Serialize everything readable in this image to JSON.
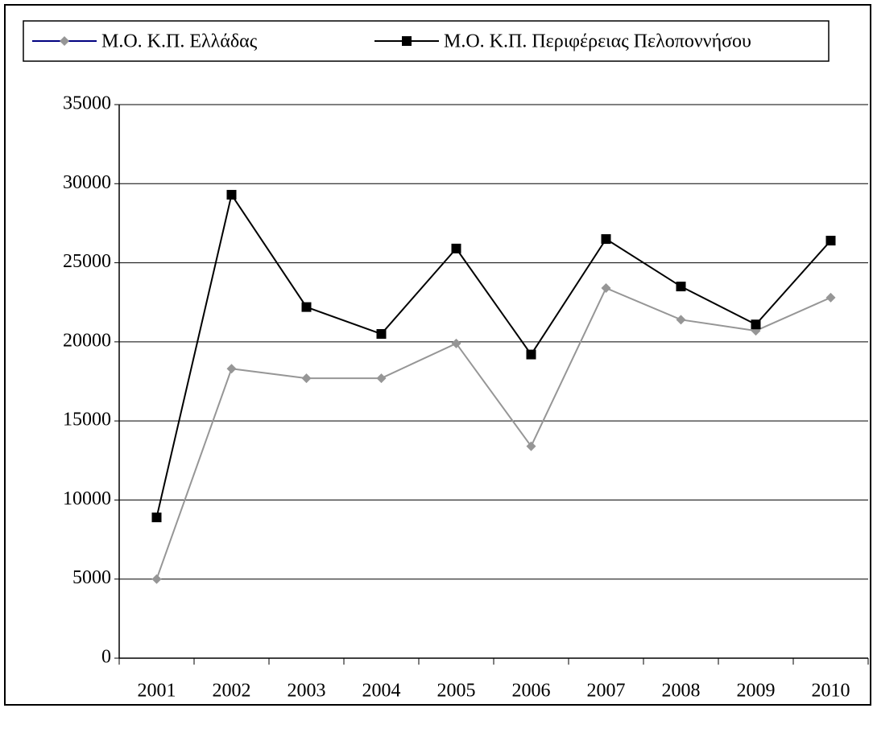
{
  "chart_data": {
    "type": "line",
    "categories": [
      "2001",
      "2002",
      "2003",
      "2004",
      "2005",
      "2006",
      "2007",
      "2008",
      "2009",
      "2010"
    ],
    "series": [
      {
        "name": "Μ.Ο. Κ.Π. Ελλάδας",
        "color": "#969696",
        "legend_color": "#000080",
        "marker": "diamond",
        "values": [
          5000,
          18300,
          17700,
          17700,
          19900,
          13400,
          23400,
          21400,
          20700,
          22800
        ]
      },
      {
        "name": "Μ.Ο. Κ.Π. Περιφέρειας Πελοποννήσου",
        "color": "#000000",
        "legend_color": "#000000",
        "marker": "square",
        "values": [
          8900,
          29300,
          22200,
          20500,
          25900,
          19200,
          26500,
          23500,
          21100,
          26400
        ]
      }
    ],
    "ylim": [
      0,
      35000
    ],
    "yticks": [
      0,
      5000,
      10000,
      15000,
      20000,
      25000,
      30000,
      35000
    ],
    "grid": true
  }
}
